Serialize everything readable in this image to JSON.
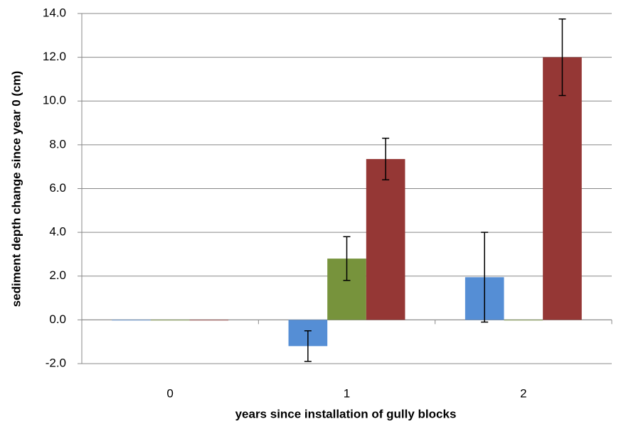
{
  "chart_data": {
    "type": "bar",
    "x_label": "years since installation of gully blocks",
    "y_label": "sediment depth change since year 0 (cm)",
    "categories": [
      "0",
      "1",
      "2"
    ],
    "series": [
      {
        "color": "#558ed5",
        "values": [
          0,
          -1.2,
          1.95
        ],
        "errors": [
          0,
          0.7,
          2.05
        ]
      },
      {
        "color": "#77933c",
        "values": [
          0,
          2.8,
          0
        ],
        "errors": [
          0,
          1.0,
          0
        ]
      },
      {
        "color": "#953735",
        "values": [
          0,
          7.35,
          12.0
        ],
        "errors": [
          0,
          0.95,
          1.75
        ]
      }
    ],
    "ylim": [
      -2,
      14
    ],
    "yticks": [
      {
        "value": -2,
        "label": "-2.0"
      },
      {
        "value": 0,
        "label": "0.0"
      },
      {
        "value": 2,
        "label": "2.0"
      },
      {
        "value": 4,
        "label": "4.0"
      },
      {
        "value": 6,
        "label": "6.0"
      },
      {
        "value": 8,
        "label": "8.0"
      },
      {
        "value": 10,
        "label": "10.0"
      },
      {
        "value": 12,
        "label": "12.0"
      },
      {
        "value": 14,
        "label": "14.0"
      }
    ],
    "grid": true
  }
}
